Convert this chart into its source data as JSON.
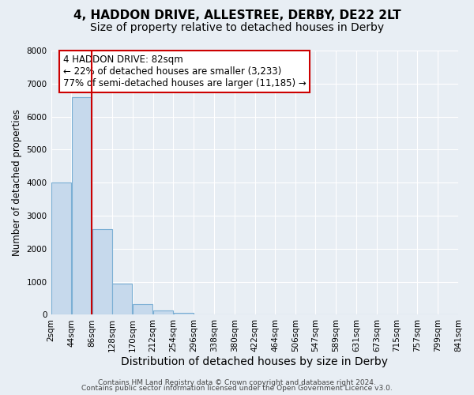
{
  "title": "4, HADDON DRIVE, ALLESTREE, DERBY, DE22 2LT",
  "subtitle": "Size of property relative to detached houses in Derby",
  "xlabel": "Distribution of detached houses by size in Derby",
  "ylabel": "Number of detached properties",
  "bar_values": [
    4000,
    6600,
    2600,
    950,
    320,
    120,
    60,
    0,
    0,
    0,
    0,
    0,
    0,
    0,
    0,
    0,
    0,
    0,
    0,
    0
  ],
  "bin_edges": [
    2,
    44,
    86,
    128,
    170,
    212,
    254,
    296,
    338,
    380,
    422,
    464,
    506,
    547,
    589,
    631,
    673,
    715,
    757,
    799,
    841
  ],
  "tick_labels": [
    "2sqm",
    "44sqm",
    "86sqm",
    "128sqm",
    "170sqm",
    "212sqm",
    "254sqm",
    "296sqm",
    "338sqm",
    "380sqm",
    "422sqm",
    "464sqm",
    "506sqm",
    "547sqm",
    "589sqm",
    "631sqm",
    "673sqm",
    "715sqm",
    "757sqm",
    "799sqm",
    "841sqm"
  ],
  "bar_color": "#c6d9ec",
  "bar_edgecolor": "#7bafd4",
  "bar_alpha": 1.0,
  "vline_x": 86,
  "vline_color": "#cc0000",
  "ylim": [
    0,
    8000
  ],
  "yticks": [
    0,
    1000,
    2000,
    3000,
    4000,
    5000,
    6000,
    7000,
    8000
  ],
  "annotation_title": "4 HADDON DRIVE: 82sqm",
  "annotation_line1": "← 22% of detached houses are smaller (3,233)",
  "annotation_line2": "77% of semi-detached houses are larger (11,185) →",
  "footer1": "Contains HM Land Registry data © Crown copyright and database right 2024.",
  "footer2": "Contains public sector information licensed under the Open Government Licence v3.0.",
  "background_color": "#e8eef4",
  "grid_color": "#ffffff",
  "title_fontsize": 11,
  "subtitle_fontsize": 10,
  "xlabel_fontsize": 10,
  "ylabel_fontsize": 8.5,
  "tick_fontsize": 7.5,
  "annot_fontsize": 8.5,
  "footer_fontsize": 6.5
}
